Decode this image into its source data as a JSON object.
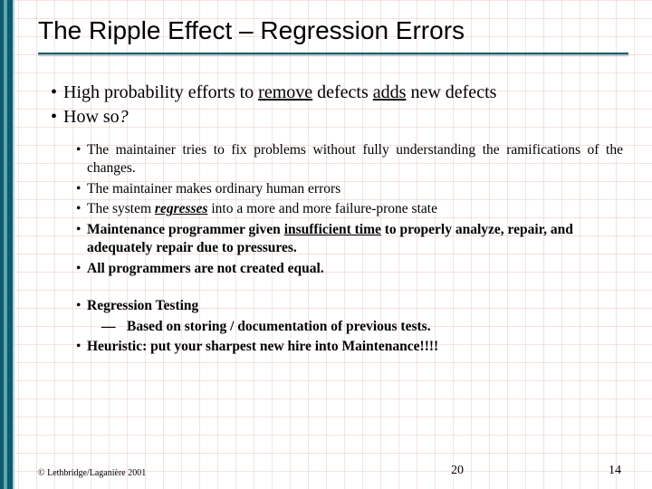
{
  "title": "The Ripple Effect – Regression Errors",
  "main_points": [
    {
      "plain1": "High probability efforts to ",
      "u1": "remove",
      "plain2": " defects ",
      "u2": "adds",
      "plain3": " new defects"
    },
    {
      "plain1": "How so",
      "italic_tail": "?"
    }
  ],
  "sub_points": [
    "The maintainer tries to fix problems without fully understanding the ramifications of the changes.",
    "The maintainer makes ordinary human errors"
  ],
  "sub_point_regress_pre": "The system ",
  "sub_point_regress_word": "regresses",
  "sub_point_regress_post": " into a more and more failure-prone state",
  "sub_point_insuf_pre": "Maintenance programmer given ",
  "sub_point_insuf_word": "insufficient time",
  "sub_point_insuf_post": " to properly analyze, repair, and adequately repair due to pressures.",
  "sub_point_last": "All programmers are not created equal.",
  "section2": {
    "heading": "Regression Testing",
    "sub_dash": "—",
    "sub_text": "Based on storing / documentation of previous tests.",
    "heuristic": "Heuristic:  put your sharpest new hire into Maintenance!!!!"
  },
  "footer": {
    "copyright": "© Lethbridge/Laganière 2001",
    "page_center": "20",
    "page_right": "14"
  },
  "colors": {
    "accent": "#12606f",
    "grid": "rgba(200,100,80,0.18)"
  }
}
